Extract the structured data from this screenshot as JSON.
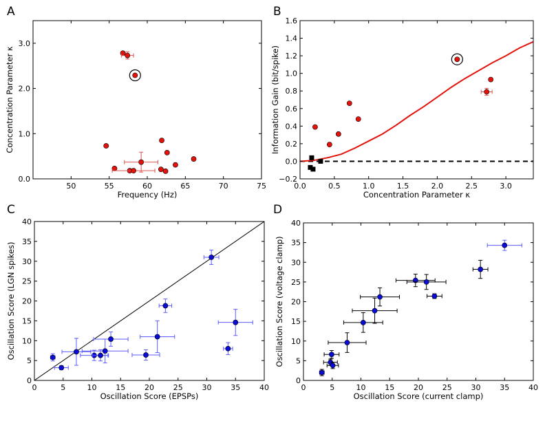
{
  "figure": {
    "colors": {
      "red_marker": "#e3120b",
      "red_error": "#d9534f",
      "red_curve": "#e3120b",
      "blue_marker": "#0b0bd6",
      "blue_error": "#5b5bff",
      "black": "#000000"
    }
  },
  "chart_data": [
    {
      "panel": "A",
      "type": "scatter",
      "title": "",
      "xlabel": "Frequency (Hz)",
      "ylabel": "Concentration Parameter κ",
      "xlim": [
        45,
        75
      ],
      "ylim": [
        0,
        3.5
      ],
      "xticks": [
        50,
        55,
        60,
        65,
        70,
        75
      ],
      "xtick_labels": [
        "50",
        "55",
        "60",
        "65",
        "70",
        "75"
      ],
      "yticks": [
        0,
        1,
        2,
        3
      ],
      "ytick_labels": [
        "0.0",
        "1.0",
        "2.0",
        "3.0"
      ],
      "points": [
        {
          "x": 56.8,
          "y": 2.78
        },
        {
          "x": 57.4,
          "y": 2.73,
          "xerr": 0.8,
          "yerr": 0.08
        },
        {
          "x": 58.4,
          "y": 2.29,
          "highlight": true
        },
        {
          "x": 54.6,
          "y": 0.73
        },
        {
          "x": 55.7,
          "y": 0.23
        },
        {
          "x": 57.7,
          "y": 0.18
        },
        {
          "x": 59.2,
          "y": 0.37,
          "xerr": 2.2,
          "yerr": 0.22
        },
        {
          "x": 58.2,
          "y": 0.18,
          "xerr": 2.8
        },
        {
          "x": 61.9,
          "y": 0.85
        },
        {
          "x": 61.8,
          "y": 0.21
        },
        {
          "x": 62.4,
          "y": 0.17
        },
        {
          "x": 62.6,
          "y": 0.58
        },
        {
          "x": 63.7,
          "y": 0.31
        },
        {
          "x": 66.1,
          "y": 0.44
        }
      ]
    },
    {
      "panel": "B",
      "type": "scatter",
      "title": "",
      "xlabel": "Concentration Parameter κ",
      "ylabel": "Information Gain  (bit/spike)",
      "xlim": [
        0,
        3.4
      ],
      "ylim": [
        -0.2,
        1.6
      ],
      "xticks": [
        0,
        0.5,
        1.0,
        1.5,
        2.0,
        2.5,
        3.0
      ],
      "xtick_labels": [
        "0.0",
        "0.5",
        "1.0",
        "1.5",
        "2.0",
        "2.5",
        "3.0"
      ],
      "yticks": [
        -0.2,
        0,
        0.2,
        0.4,
        0.6,
        0.8,
        1.0,
        1.2,
        1.4,
        1.6
      ],
      "ytick_labels": [
        "−0.2",
        "0.0",
        "0.2",
        "0.4",
        "0.6",
        "0.8",
        "1.0",
        "1.2",
        "1.4",
        "1.6"
      ],
      "reference_line": {
        "y": 0,
        "style": "dashed"
      },
      "curve": {
        "name": "theoretical information gain",
        "x": [
          0,
          0.2,
          0.4,
          0.6,
          0.8,
          1.0,
          1.2,
          1.4,
          1.6,
          1.8,
          2.0,
          2.2,
          2.4,
          2.6,
          2.8,
          3.0,
          3.2,
          3.4
        ],
        "y": [
          0,
          0.01,
          0.04,
          0.08,
          0.15,
          0.23,
          0.31,
          0.41,
          0.52,
          0.62,
          0.73,
          0.84,
          0.94,
          1.03,
          1.12,
          1.2,
          1.29,
          1.36
        ]
      },
      "series": [
        {
          "name": "red circles",
          "marker": "circle",
          "points": [
            {
              "x": 0.22,
              "y": 0.39
            },
            {
              "x": 0.43,
              "y": 0.19
            },
            {
              "x": 0.56,
              "y": 0.31
            },
            {
              "x": 0.72,
              "y": 0.66
            },
            {
              "x": 0.85,
              "y": 0.48
            },
            {
              "x": 2.29,
              "y": 1.16,
              "highlight": true
            },
            {
              "x": 2.78,
              "y": 0.93
            },
            {
              "x": 2.72,
              "y": 0.79,
              "xerr": 0.08,
              "yerr": 0.04
            }
          ]
        },
        {
          "name": "black squares",
          "marker": "square",
          "points": [
            {
              "x": 0.17,
              "y": 0.04
            },
            {
              "x": 0.15,
              "y": -0.07
            },
            {
              "x": 0.19,
              "y": -0.09
            },
            {
              "x": 0.3,
              "y": 0.0
            }
          ]
        }
      ]
    },
    {
      "panel": "C",
      "type": "scatter",
      "title": "",
      "xlabel": "Oscillation Score (EPSPs)",
      "ylabel": "Oscillation Score (LGN spikes)",
      "xlim": [
        0,
        40
      ],
      "ylim": [
        0,
        40
      ],
      "xticks": [
        0,
        5,
        10,
        15,
        20,
        25,
        30,
        35,
        40
      ],
      "xtick_labels": [
        "0",
        "5",
        "10",
        "15",
        "20",
        "25",
        "30",
        "35",
        "40"
      ],
      "yticks": [
        0,
        5,
        10,
        15,
        20,
        25,
        30,
        35,
        40
      ],
      "ytick_labels": [
        "0",
        "5",
        "10",
        "15",
        "20",
        "25",
        "30",
        "35",
        "40"
      ],
      "identity_line": true,
      "points": [
        {
          "x": 3.2,
          "y": 5.8,
          "xerr": 0.4,
          "yerr": 0.9
        },
        {
          "x": 4.7,
          "y": 3.2,
          "xerr": 1.2,
          "yerr": 0.5
        },
        {
          "x": 7.3,
          "y": 7.2,
          "xerr": 2.5,
          "yerr": 3.4
        },
        {
          "x": 10.4,
          "y": 6.3,
          "xerr": 2.4,
          "yerr": 1.3
        },
        {
          "x": 11.5,
          "y": 6.3,
          "xerr": 1.4,
          "yerr": 1.4
        },
        {
          "x": 12.3,
          "y": 7.4,
          "xerr": 4.0,
          "yerr": 3.0
        },
        {
          "x": 13.3,
          "y": 10.4,
          "xerr": 3.0,
          "yerr": 1.8
        },
        {
          "x": 19.4,
          "y": 6.4,
          "xerr": 2.4,
          "yerr": 1.3
        },
        {
          "x": 21.4,
          "y": 11.0,
          "xerr": 3.0,
          "yerr": 4.0
        },
        {
          "x": 22.8,
          "y": 18.8,
          "xerr": 1.1,
          "yerr": 1.7
        },
        {
          "x": 30.8,
          "y": 31.0,
          "xerr": 1.3,
          "yerr": 1.8
        },
        {
          "x": 33.7,
          "y": 8.0,
          "xerr": 0.8,
          "yerr": 1.5
        },
        {
          "x": 35.0,
          "y": 14.6,
          "xerr": 3.0,
          "yerr": 3.3
        }
      ]
    },
    {
      "panel": "D",
      "type": "scatter",
      "title": "",
      "xlabel": "Oscillation Score (current clamp)",
      "ylabel": "Oscillation Score (voltage clamp)",
      "xlim": [
        0,
        40
      ],
      "ylim": [
        0,
        40
      ],
      "xticks": [
        0,
        5,
        10,
        15,
        20,
        25,
        30,
        35,
        40
      ],
      "xtick_labels": [
        "0",
        "5",
        "10",
        "15",
        "20",
        "25",
        "30",
        "35",
        "40"
      ],
      "yticks": [
        0,
        5,
        10,
        15,
        20,
        25,
        30,
        35,
        40
      ],
      "ytick_labels": [
        "0",
        "5",
        "10",
        "15",
        "20",
        "25",
        "30",
        "35",
        "40"
      ],
      "points": [
        {
          "x": 3.2,
          "y": 2.0,
          "xerr": 0.4,
          "yerr": 0.8
        },
        {
          "x": 4.7,
          "y": 4.6,
          "xerr": 1.2,
          "yerr": 0.8
        },
        {
          "x": 4.9,
          "y": 6.6,
          "xerr": 1.3,
          "yerr": 1.0
        },
        {
          "x": 5.1,
          "y": 3.8,
          "xerr": 1.0,
          "yerr": 0.8
        },
        {
          "x": 7.6,
          "y": 9.6,
          "xerr": 3.3,
          "yerr": 2.5
        },
        {
          "x": 10.4,
          "y": 14.7,
          "xerr": 3.4,
          "yerr": 2.5
        },
        {
          "x": 12.4,
          "y": 17.7,
          "xerr": 3.9,
          "yerr": 3.2
        },
        {
          "x": 13.3,
          "y": 21.2,
          "xerr": 3.4,
          "yerr": 2.3
        },
        {
          "x": 19.5,
          "y": 25.4,
          "xerr": 3.4,
          "yerr": 1.6
        },
        {
          "x": 21.4,
          "y": 25.0,
          "xerr": 3.4,
          "yerr": 1.9
        },
        {
          "x": 22.8,
          "y": 21.4,
          "xerr": 1.3,
          "yerr": 0.6
        },
        {
          "x": 30.8,
          "y": 28.2,
          "xerr": 1.3,
          "yerr": 2.3
        },
        {
          "x": 35.0,
          "y": 34.3,
          "xerr": 3.0,
          "yerr": 1.3
        }
      ]
    }
  ]
}
